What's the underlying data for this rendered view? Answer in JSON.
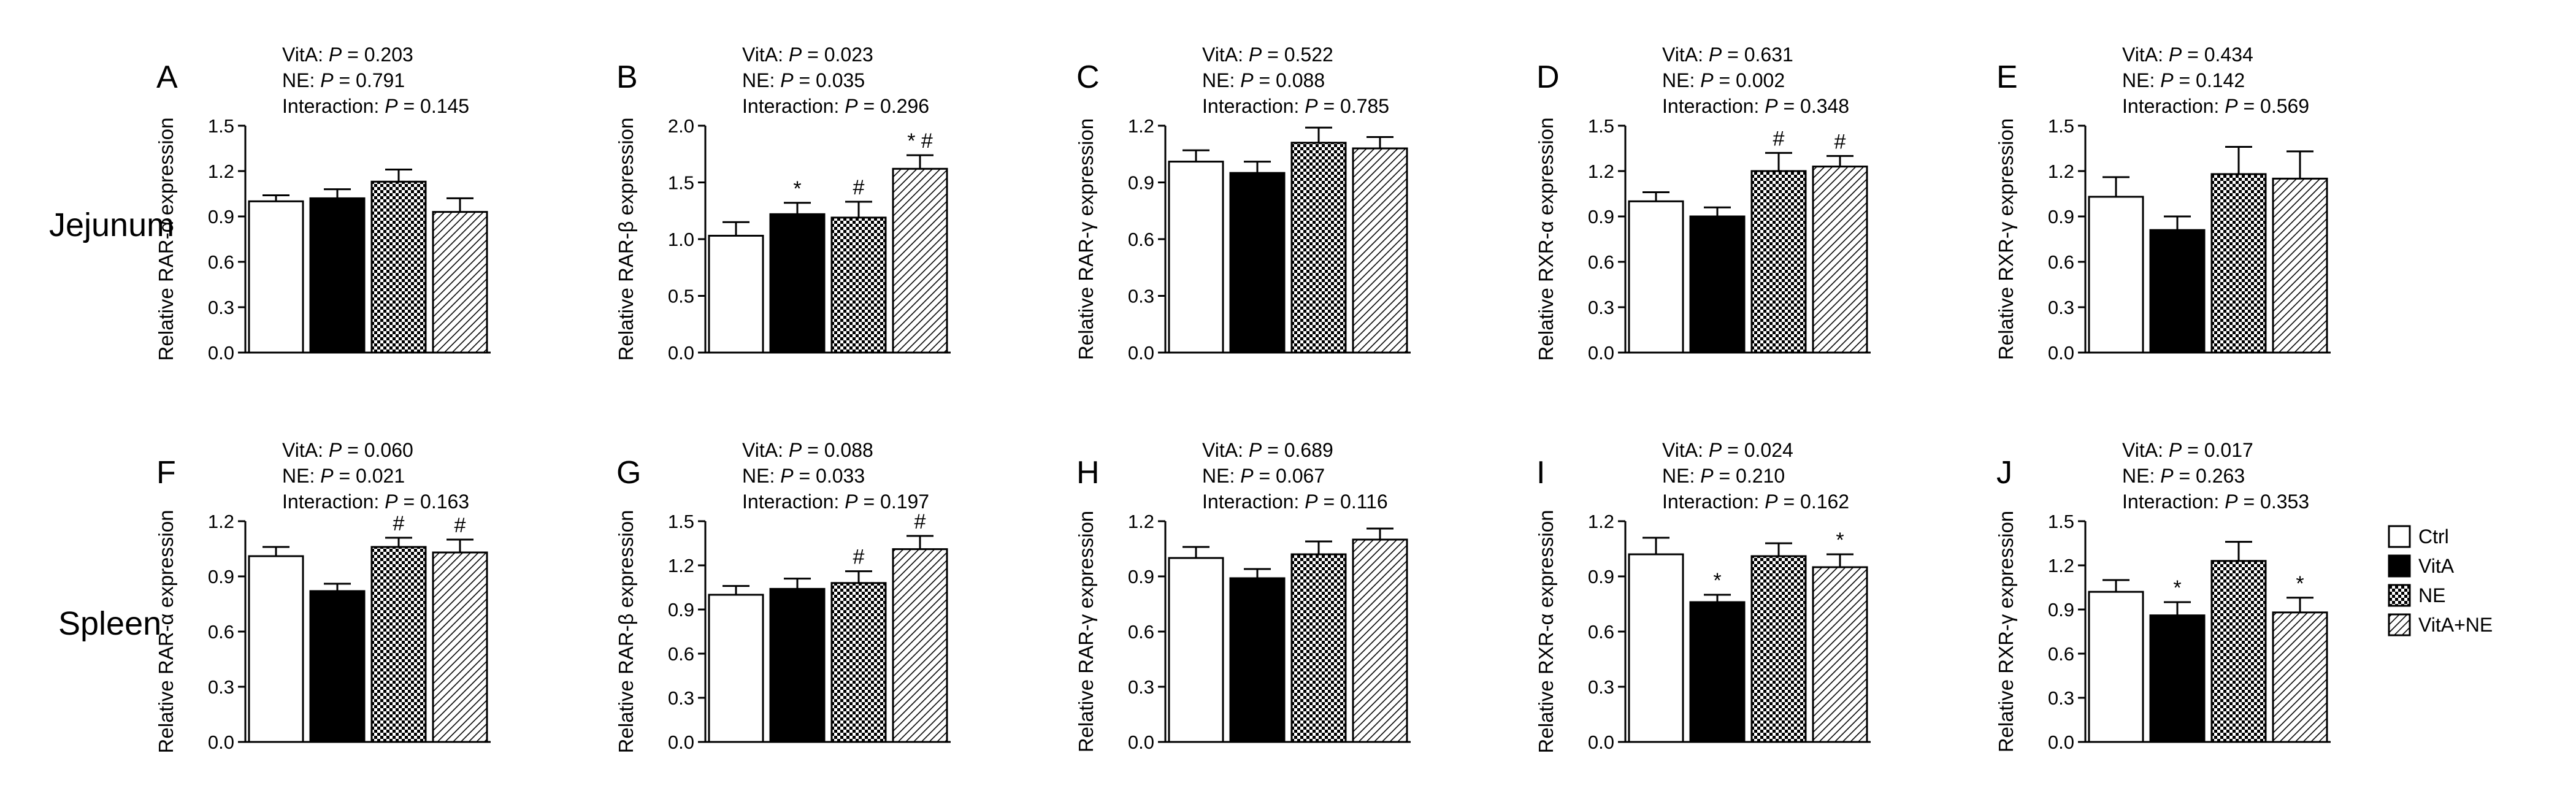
{
  "figure": {
    "row_labels": [
      "Jejunum",
      "Spleen"
    ],
    "legend": [
      {
        "label": "Ctrl",
        "pattern": "white"
      },
      {
        "label": "VitA",
        "pattern": "black"
      },
      {
        "label": "NE",
        "pattern": "checker"
      },
      {
        "label": "VitA+NE",
        "pattern": "hatch"
      }
    ],
    "stats_labels": {
      "vita": "VitA: ",
      "ne": "NE: ",
      "interaction": "Interaction: ",
      "p": "P",
      "eq": " = "
    }
  },
  "chart_data": [
    {
      "type": "bar",
      "panel": "A",
      "row": "Jejunum",
      "ylabel": "Relative RAR-α expression",
      "categories": [
        "Ctrl",
        "VitA",
        "NE",
        "VitA+NE"
      ],
      "values": [
        1.0,
        1.02,
        1.13,
        0.93
      ],
      "errors": [
        0.04,
        0.06,
        0.08,
        0.09
      ],
      "ylim": [
        0,
        1.5
      ],
      "yticks": [
        "0.0",
        "0.3",
        "0.6",
        "0.9",
        "1.2",
        "1.5"
      ],
      "annotations": [
        "",
        "",
        "",
        ""
      ],
      "stats": {
        "vita": "0.203",
        "ne": "0.791",
        "interaction": "0.145"
      }
    },
    {
      "type": "bar",
      "panel": "B",
      "row": "Jejunum",
      "ylabel": "Relative RAR-β expression",
      "categories": [
        "Ctrl",
        "VitA",
        "NE",
        "VitA+NE"
      ],
      "values": [
        1.03,
        1.22,
        1.19,
        1.62
      ],
      "errors": [
        0.12,
        0.1,
        0.14,
        0.12
      ],
      "ylim": [
        0,
        2.0
      ],
      "yticks": [
        "0.0",
        "0.5",
        "1.0",
        "1.5",
        "2.0"
      ],
      "annotations": [
        "",
        "*",
        "#",
        "* #"
      ],
      "stats": {
        "vita": "0.023",
        "ne": "0.035",
        "interaction": "0.296"
      }
    },
    {
      "type": "bar",
      "panel": "C",
      "row": "Jejunum",
      "ylabel": "Relative RAR-γ expression",
      "categories": [
        "Ctrl",
        "VitA",
        "NE",
        "VitA+NE"
      ],
      "values": [
        1.01,
        0.95,
        1.11,
        1.08
      ],
      "errors": [
        0.06,
        0.06,
        0.08,
        0.06
      ],
      "ylim": [
        0,
        1.2
      ],
      "yticks": [
        "0.0",
        "0.3",
        "0.6",
        "0.9",
        "1.2"
      ],
      "annotations": [
        "",
        "",
        "",
        ""
      ],
      "stats": {
        "vita": "0.522",
        "ne": "0.088",
        "interaction": "0.785"
      }
    },
    {
      "type": "bar",
      "panel": "D",
      "row": "Jejunum",
      "ylabel": "Relative RXR-α expression",
      "categories": [
        "Ctrl",
        "VitA",
        "NE",
        "VitA+NE"
      ],
      "values": [
        1.0,
        0.9,
        1.2,
        1.23
      ],
      "errors": [
        0.06,
        0.06,
        0.12,
        0.07
      ],
      "ylim": [
        0,
        1.5
      ],
      "yticks": [
        "0.0",
        "0.3",
        "0.6",
        "0.9",
        "1.2",
        "1.5"
      ],
      "annotations": [
        "",
        "",
        "#",
        "#"
      ],
      "stats": {
        "vita": "0.631",
        "ne": "0.002",
        "interaction": "0.348"
      }
    },
    {
      "type": "bar",
      "panel": "E",
      "row": "Jejunum",
      "ylabel": "Relative RXR-γ expression",
      "categories": [
        "Ctrl",
        "VitA",
        "NE",
        "VitA+NE"
      ],
      "values": [
        1.03,
        0.81,
        1.18,
        1.15
      ],
      "errors": [
        0.13,
        0.09,
        0.18,
        0.18
      ],
      "ylim": [
        0,
        1.5
      ],
      "yticks": [
        "0.0",
        "0.3",
        "0.6",
        "0.9",
        "1.2",
        "1.5"
      ],
      "annotations": [
        "",
        "",
        "",
        ""
      ],
      "stats": {
        "vita": "0.434",
        "ne": "0.142",
        "interaction": "0.569"
      }
    },
    {
      "type": "bar",
      "panel": "F",
      "row": "Spleen",
      "ylabel": "Relative RAR-α expression",
      "categories": [
        "Ctrl",
        "VitA",
        "NE",
        "VitA+NE"
      ],
      "values": [
        1.01,
        0.82,
        1.06,
        1.03
      ],
      "errors": [
        0.05,
        0.04,
        0.05,
        0.07
      ],
      "ylim": [
        0,
        1.2
      ],
      "yticks": [
        "0.0",
        "0.3",
        "0.6",
        "0.9",
        "1.2"
      ],
      "annotations": [
        "",
        "",
        "#",
        "#"
      ],
      "stats": {
        "vita": "0.060",
        "ne": "0.021",
        "interaction": "0.163"
      }
    },
    {
      "type": "bar",
      "panel": "G",
      "row": "Spleen",
      "ylabel": "Relative RAR-β expression",
      "categories": [
        "Ctrl",
        "VitA",
        "NE",
        "VitA+NE"
      ],
      "values": [
        1.0,
        1.04,
        1.08,
        1.31
      ],
      "errors": [
        0.06,
        0.07,
        0.08,
        0.09
      ],
      "ylim": [
        0,
        1.5
      ],
      "yticks": [
        "0.0",
        "0.3",
        "0.6",
        "0.9",
        "1.2",
        "1.5"
      ],
      "annotations": [
        "",
        "",
        "#",
        "#"
      ],
      "stats": {
        "vita": "0.088",
        "ne": "0.033",
        "interaction": "0.197"
      }
    },
    {
      "type": "bar",
      "panel": "H",
      "row": "Spleen",
      "ylabel": "Relative RAR-γ expression",
      "categories": [
        "Ctrl",
        "VitA",
        "NE",
        "VitA+NE"
      ],
      "values": [
        1.0,
        0.89,
        1.02,
        1.1
      ],
      "errors": [
        0.06,
        0.05,
        0.07,
        0.06
      ],
      "ylim": [
        0,
        1.2
      ],
      "yticks": [
        "0.0",
        "0.3",
        "0.6",
        "0.9",
        "1.2"
      ],
      "annotations": [
        "",
        "",
        "",
        ""
      ],
      "stats": {
        "vita": "0.689",
        "ne": "0.067",
        "interaction": "0.116"
      }
    },
    {
      "type": "bar",
      "panel": "I",
      "row": "Spleen",
      "ylabel": "Relative RXR-α expression",
      "categories": [
        "Ctrl",
        "VitA",
        "NE",
        "VitA+NE"
      ],
      "values": [
        1.02,
        0.76,
        1.01,
        0.95
      ],
      "errors": [
        0.09,
        0.04,
        0.07,
        0.07
      ],
      "ylim": [
        0,
        1.2
      ],
      "yticks": [
        "0.0",
        "0.3",
        "0.6",
        "0.9",
        "1.2"
      ],
      "annotations": [
        "",
        "*",
        "",
        "*"
      ],
      "stats": {
        "vita": "0.024",
        "ne": "0.210",
        "interaction": "0.162"
      }
    },
    {
      "type": "bar",
      "panel": "J",
      "row": "Spleen",
      "ylabel": "Relative RXR-γ expression",
      "categories": [
        "Ctrl",
        "VitA",
        "NE",
        "VitA+NE"
      ],
      "values": [
        1.02,
        0.86,
        1.23,
        0.88
      ],
      "errors": [
        0.08,
        0.09,
        0.13,
        0.1
      ],
      "ylim": [
        0,
        1.5
      ],
      "yticks": [
        "0.0",
        "0.3",
        "0.6",
        "0.9",
        "1.2",
        "1.5"
      ],
      "annotations": [
        "",
        "*",
        "",
        "*"
      ],
      "stats": {
        "vita": "0.017",
        "ne": "0.263",
        "interaction": "0.353"
      }
    }
  ]
}
